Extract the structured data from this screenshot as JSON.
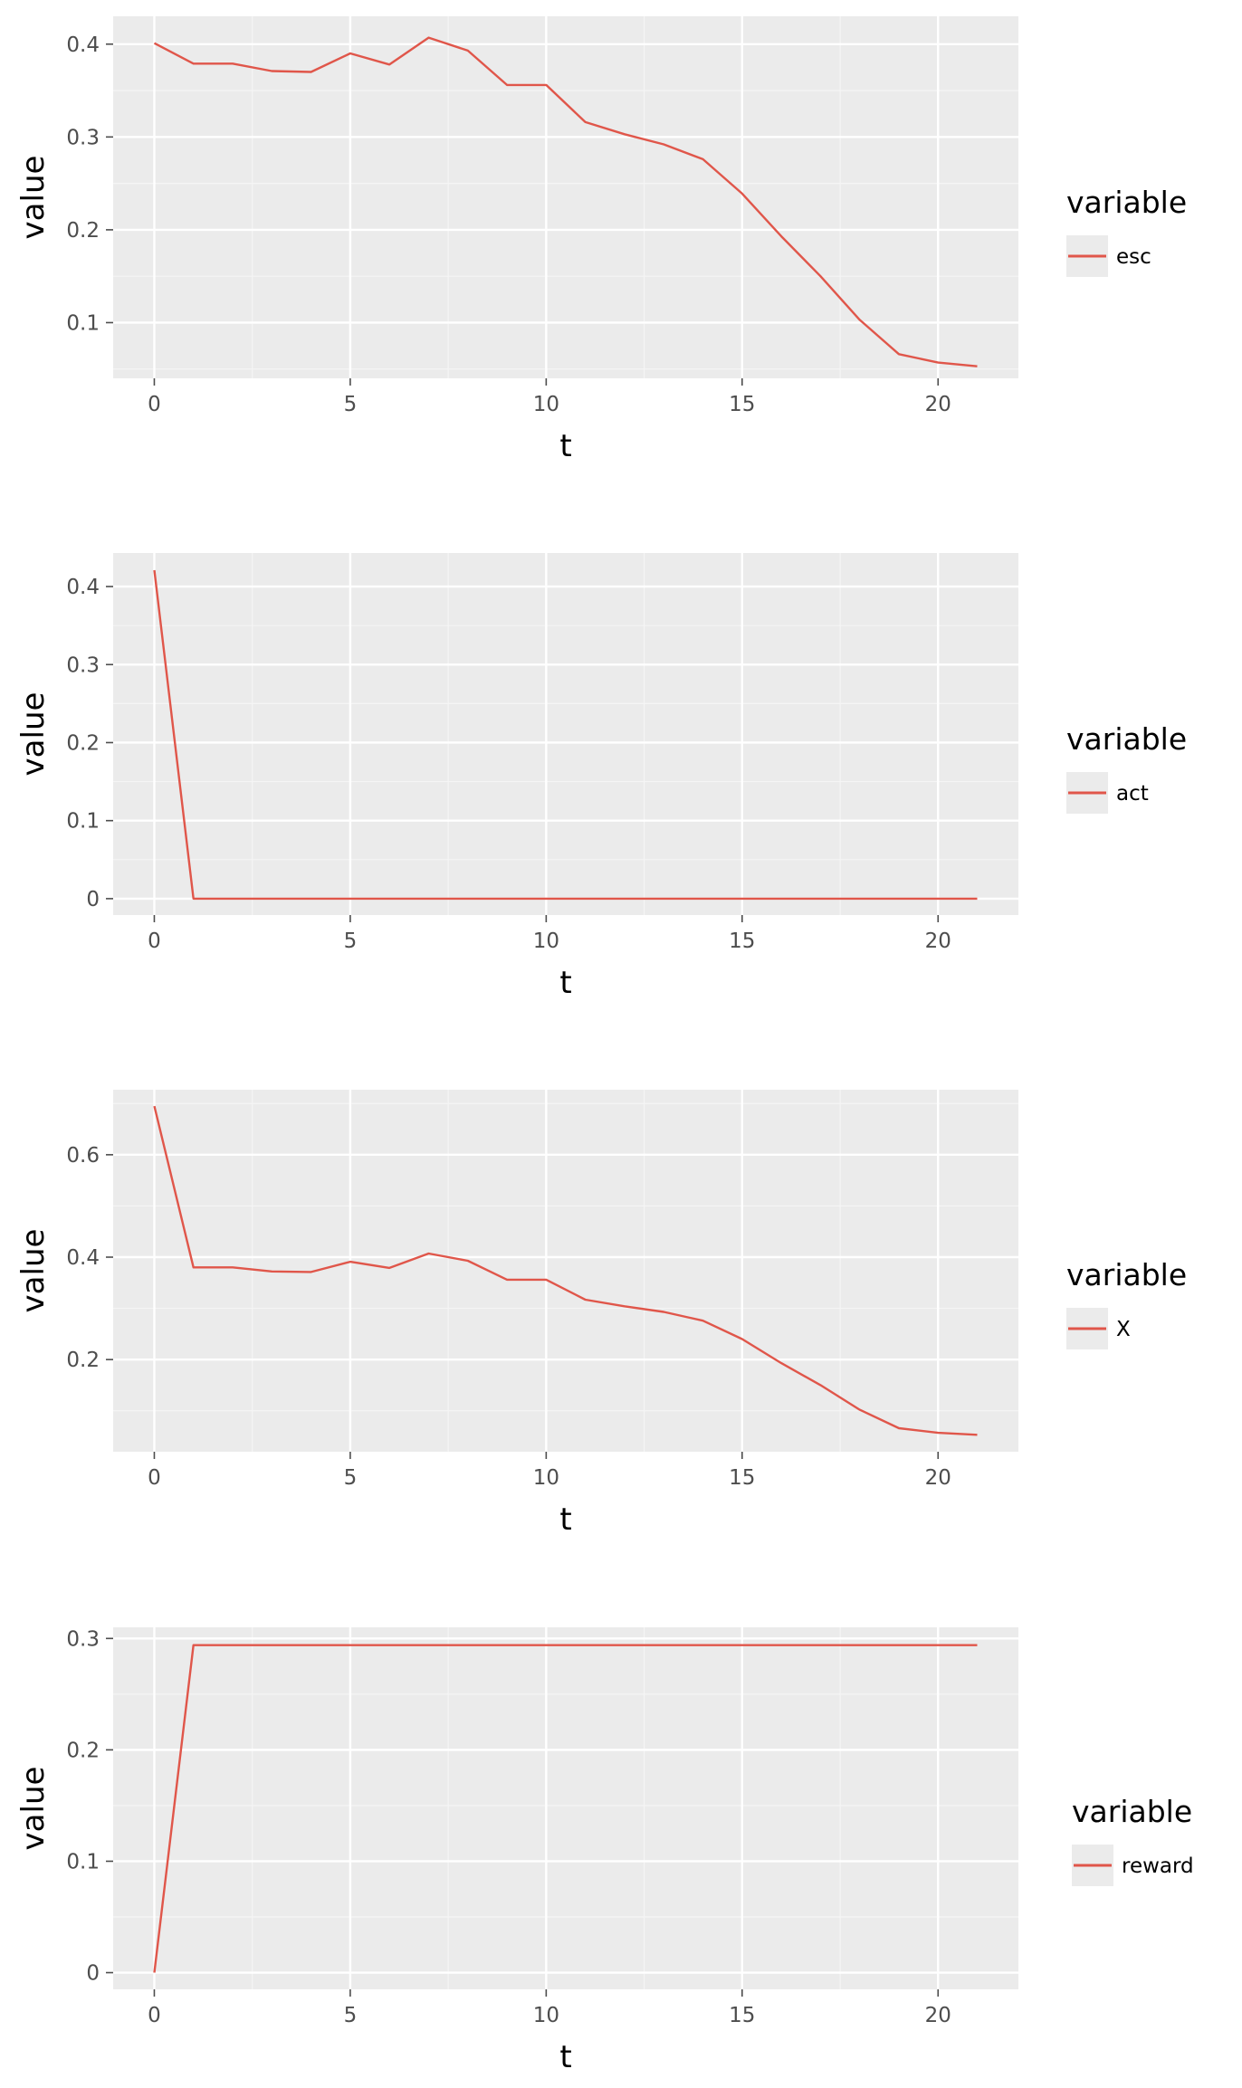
{
  "colors": {
    "series": "#e0564a",
    "panel": "#ebebeb",
    "grid": "#ffffff"
  },
  "chart_data": [
    {
      "type": "line",
      "xlabel": "t",
      "ylabel": "value",
      "xlim": [
        -1.05,
        22.05
      ],
      "ylim": [
        0.04,
        0.43
      ],
      "xticks": [
        0,
        5,
        10,
        15,
        20
      ],
      "yticks": [
        0.1,
        0.2,
        0.3,
        0.4
      ],
      "ytick_labels": [
        "0.1",
        "0.2",
        "0.3",
        "0.4"
      ],
      "legend_title": "variable",
      "legend_position": "right",
      "grid": true,
      "series": [
        {
          "name": "esc",
          "x": [
            0,
            1,
            2,
            3,
            4,
            5,
            6,
            7,
            8,
            9,
            10,
            11,
            12,
            13,
            14,
            15,
            16,
            17,
            18,
            19,
            20,
            21
          ],
          "values": [
            0.401,
            0.379,
            0.379,
            0.371,
            0.37,
            0.39,
            0.378,
            0.407,
            0.393,
            0.356,
            0.356,
            0.316,
            0.303,
            0.292,
            0.276,
            0.239,
            0.193,
            0.15,
            0.103,
            0.066,
            0.057,
            0.053
          ]
        }
      ]
    },
    {
      "type": "line",
      "xlabel": "t",
      "ylabel": "value",
      "xlim": [
        -1.05,
        22.05
      ],
      "ylim": [
        -0.021,
        0.443
      ],
      "xticks": [
        0,
        5,
        10,
        15,
        20
      ],
      "yticks": [
        0,
        0.1,
        0.2,
        0.3,
        0.4
      ],
      "ytick_labels": [
        "0",
        "0.1",
        "0.2",
        "0.3",
        "0.4"
      ],
      "legend_title": "variable",
      "legend_position": "right",
      "grid": true,
      "series": [
        {
          "name": "act",
          "x": [
            0,
            1,
            2,
            3,
            4,
            5,
            6,
            7,
            8,
            9,
            10,
            11,
            12,
            13,
            14,
            15,
            16,
            17,
            18,
            19,
            20,
            21
          ],
          "values": [
            0.421,
            0,
            0,
            0,
            0,
            0,
            0,
            0,
            0,
            0,
            0,
            0,
            0,
            0,
            0,
            0,
            0,
            0,
            0,
            0,
            0,
            0
          ]
        }
      ]
    },
    {
      "type": "line",
      "xlabel": "t",
      "ylabel": "value",
      "xlim": [
        -1.05,
        22.05
      ],
      "ylim": [
        0.02,
        0.727
      ],
      "xticks": [
        0,
        5,
        10,
        15,
        20
      ],
      "yticks": [
        0.2,
        0.4,
        0.6
      ],
      "ytick_labels": [
        "0.2",
        "0.4",
        "0.6"
      ],
      "legend_title": "variable",
      "legend_position": "right",
      "grid": true,
      "series": [
        {
          "name": "X",
          "x": [
            0,
            1,
            2,
            3,
            4,
            5,
            6,
            7,
            8,
            9,
            10,
            11,
            12,
            13,
            14,
            15,
            16,
            17,
            18,
            19,
            20,
            21
          ],
          "values": [
            0.695,
            0.38,
            0.38,
            0.372,
            0.371,
            0.391,
            0.379,
            0.407,
            0.393,
            0.356,
            0.356,
            0.317,
            0.304,
            0.293,
            0.276,
            0.24,
            0.193,
            0.15,
            0.102,
            0.066,
            0.057,
            0.053
          ]
        }
      ]
    },
    {
      "type": "line",
      "xlabel": "t",
      "ylabel": "value",
      "xlim": [
        -1.05,
        22.05
      ],
      "ylim": [
        -0.015,
        0.31
      ],
      "xticks": [
        0,
        5,
        10,
        15,
        20
      ],
      "yticks": [
        0,
        0.1,
        0.2,
        0.3
      ],
      "ytick_labels": [
        "0",
        "0.1",
        "0.2",
        "0.3"
      ],
      "legend_title": "variable",
      "legend_position": "right",
      "grid": true,
      "series": [
        {
          "name": "reward",
          "x": [
            0,
            1,
            2,
            3,
            4,
            5,
            6,
            7,
            8,
            9,
            10,
            11,
            12,
            13,
            14,
            15,
            16,
            17,
            18,
            19,
            20,
            21
          ],
          "values": [
            0,
            0.294,
            0.294,
            0.294,
            0.294,
            0.294,
            0.294,
            0.294,
            0.294,
            0.294,
            0.294,
            0.294,
            0.294,
            0.294,
            0.294,
            0.294,
            0.294,
            0.294,
            0.294,
            0.294,
            0.294,
            0.294
          ]
        }
      ]
    }
  ]
}
